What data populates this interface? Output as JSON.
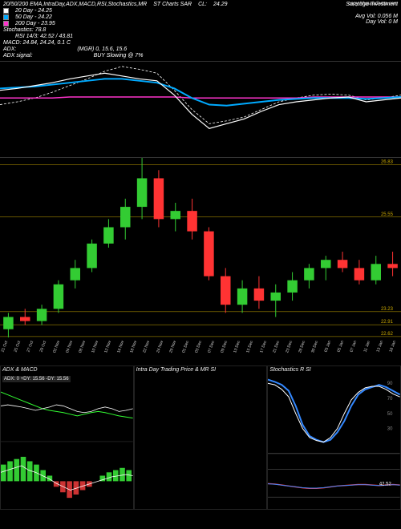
{
  "header": {
    "chart_title": "20/50/200 EMA,IntraDay,ADX,MACD,RSI,Stochastics,MR",
    "subtitle": "ST Charts SAR",
    "company": "Saratoga Investment",
    "cl_label": "CL:",
    "cl_value": "24.29",
    "avg_vol_label": "Avg Vol:",
    "avg_vol_value": "0.056 M",
    "day_vol_label": "Day Vol:",
    "day_vol_value": "0 M",
    "copy": "copy MunafaSutra.com"
  },
  "indicators": {
    "ema20": {
      "color": "#ffffff",
      "label": "20 Day - 24.25"
    },
    "ema50": {
      "color": "#00aaff",
      "label": "50 Day - 24.22"
    },
    "ema200": {
      "color": "#ff33cc",
      "label": "200 Day - 23.95"
    },
    "stoch": "Stochastics: 78.8",
    "rsi": "RSI 14/3: 42.52 / 43.81",
    "macd": "MACD: 24.84, 24.24, 0.1 C",
    "adx": "ADX:",
    "mgr": "(MGR) 0, 15.6, 15.6",
    "adx_signal": "ADX signal:",
    "buy_signal": "BUY Slowing @ 7%"
  },
  "ma_series": {
    "white": [
      70,
      72,
      75,
      78,
      82,
      85,
      88,
      85,
      82,
      80,
      65,
      45,
      30,
      35,
      40,
      48,
      55,
      58,
      60,
      62,
      63,
      58,
      60,
      62
    ],
    "blue": [
      72,
      73,
      74,
      76,
      78,
      80,
      82,
      82,
      80,
      78,
      72,
      62,
      55,
      54,
      56,
      58,
      60,
      61,
      62,
      62,
      62,
      61,
      62,
      63
    ],
    "pink": [
      62,
      62,
      62,
      62,
      63,
      63,
      63,
      63,
      63,
      63,
      63,
      62,
      62,
      62,
      62,
      62,
      62,
      62,
      63,
      63,
      63,
      63,
      63,
      63
    ],
    "dashed": [
      55,
      58,
      62,
      68,
      75,
      82,
      90,
      95,
      92,
      88,
      70,
      50,
      35,
      38,
      42,
      50,
      58,
      62,
      65,
      66,
      65,
      60,
      62,
      65
    ]
  },
  "candle": {
    "ymin": 22.5,
    "ymax": 27.0,
    "hlines": [
      26.83,
      25.55,
      23.23,
      22.91,
      22.62
    ],
    "data": [
      {
        "o": 22.8,
        "h": 23.2,
        "l": 22.6,
        "c": 23.1
      },
      {
        "o": 23.1,
        "h": 23.3,
        "l": 22.9,
        "c": 23.0
      },
      {
        "o": 23.0,
        "h": 23.4,
        "l": 22.9,
        "c": 23.3
      },
      {
        "o": 23.3,
        "h": 24.0,
        "l": 23.2,
        "c": 23.9
      },
      {
        "o": 24.0,
        "h": 24.5,
        "l": 23.8,
        "c": 24.3
      },
      {
        "o": 24.3,
        "h": 25.0,
        "l": 24.2,
        "c": 24.9
      },
      {
        "o": 24.9,
        "h": 25.5,
        "l": 24.8,
        "c": 25.3
      },
      {
        "o": 25.3,
        "h": 26.0,
        "l": 25.0,
        "c": 25.8
      },
      {
        "o": 25.8,
        "h": 27.0,
        "l": 25.5,
        "c": 26.5
      },
      {
        "o": 26.5,
        "h": 26.7,
        "l": 25.3,
        "c": 25.5
      },
      {
        "o": 25.5,
        "h": 25.9,
        "l": 25.2,
        "c": 25.7
      },
      {
        "o": 25.7,
        "h": 26.0,
        "l": 25.0,
        "c": 25.2
      },
      {
        "o": 25.2,
        "h": 25.3,
        "l": 24.0,
        "c": 24.1
      },
      {
        "o": 24.1,
        "h": 24.3,
        "l": 23.2,
        "c": 23.4
      },
      {
        "o": 23.4,
        "h": 24.0,
        "l": 23.2,
        "c": 23.8
      },
      {
        "o": 23.8,
        "h": 24.1,
        "l": 23.3,
        "c": 23.5
      },
      {
        "o": 23.5,
        "h": 23.9,
        "l": 23.1,
        "c": 23.7
      },
      {
        "o": 23.7,
        "h": 24.2,
        "l": 23.5,
        "c": 24.0
      },
      {
        "o": 24.0,
        "h": 24.4,
        "l": 23.8,
        "c": 24.3
      },
      {
        "o": 24.3,
        "h": 24.6,
        "l": 24.0,
        "c": 24.5
      },
      {
        "o": 24.5,
        "h": 24.7,
        "l": 24.2,
        "c": 24.3
      },
      {
        "o": 24.3,
        "h": 24.5,
        "l": 23.9,
        "c": 24.0
      },
      {
        "o": 24.0,
        "h": 24.6,
        "l": 23.9,
        "c": 24.4
      },
      {
        "o": 24.4,
        "h": 24.7,
        "l": 24.1,
        "c": 24.3
      }
    ],
    "up_color": "#33cc33",
    "down_color": "#ff3333"
  },
  "dates": [
    "21 Oct",
    "25 Oct",
    "27 Oct",
    "29 Oct",
    "02 Nov",
    "04 Nov",
    "08 Nov",
    "10 Nov",
    "12 Nov",
    "16 Nov",
    "18 Nov",
    "22 Nov",
    "24 Nov",
    "29 Nov",
    "01 Dec",
    "03 Dec",
    "07 Dec",
    "09 Dec",
    "13 Dec",
    "15 Dec",
    "17 Dec",
    "21 Dec",
    "23 Dec",
    "28 Dec",
    "30 Dec",
    "03 Jan",
    "05 Jan",
    "07 Jan",
    "11 Jan",
    "13 Jan",
    "18 Jan"
  ],
  "adx_panel": {
    "title": "ADX & MACD",
    "status": "ADX: 0  +DY: 15.56 -DY: 15.56",
    "series_a": [
      85,
      80,
      75,
      70,
      65,
      60,
      55,
      52,
      50,
      48,
      45,
      42,
      45,
      48,
      50,
      48,
      45,
      42,
      40,
      38
    ],
    "series_b": [
      60,
      62,
      60,
      58,
      55,
      52,
      55,
      58,
      62,
      60,
      55,
      50,
      48,
      50,
      55,
      58,
      55,
      50,
      52,
      55
    ],
    "color_a": "#33ff33",
    "color_b": "#ffffff",
    "macd_hist": [
      15,
      18,
      20,
      22,
      18,
      15,
      10,
      5,
      -5,
      -10,
      -15,
      -12,
      -8,
      -5,
      0,
      5,
      8,
      10,
      12,
      10
    ],
    "macd_line": [
      8,
      10,
      12,
      14,
      10,
      8,
      5,
      2,
      -2,
      -5,
      -8,
      -6,
      -4,
      -2,
      0,
      2,
      4,
      5,
      6,
      5
    ]
  },
  "mid_panel": {
    "title": "Intra Day Trading Price & MR       SI"
  },
  "stoch_panel": {
    "title": "Stochastics R          SI",
    "ticks": [
      90,
      70,
      50,
      30
    ],
    "series_a": [
      95,
      92,
      88,
      80,
      60,
      35,
      20,
      15,
      12,
      15,
      25,
      40,
      60,
      75,
      82,
      85,
      88,
      85,
      80,
      75
    ],
    "series_b": [
      90,
      88,
      82,
      72,
      50,
      30,
      18,
      14,
      12,
      18,
      30,
      50,
      68,
      78,
      84,
      86,
      86,
      82,
      76,
      72
    ],
    "color_a": "#3388ff",
    "color_b": "#ffffff",
    "rsi_val": "42.52",
    "rsi_series": [
      45,
      44,
      42,
      40,
      38,
      36,
      35,
      35,
      36,
      38,
      40,
      41,
      42,
      43,
      43,
      42,
      41,
      42,
      43,
      42
    ],
    "rsi_color": "#ff3333"
  }
}
